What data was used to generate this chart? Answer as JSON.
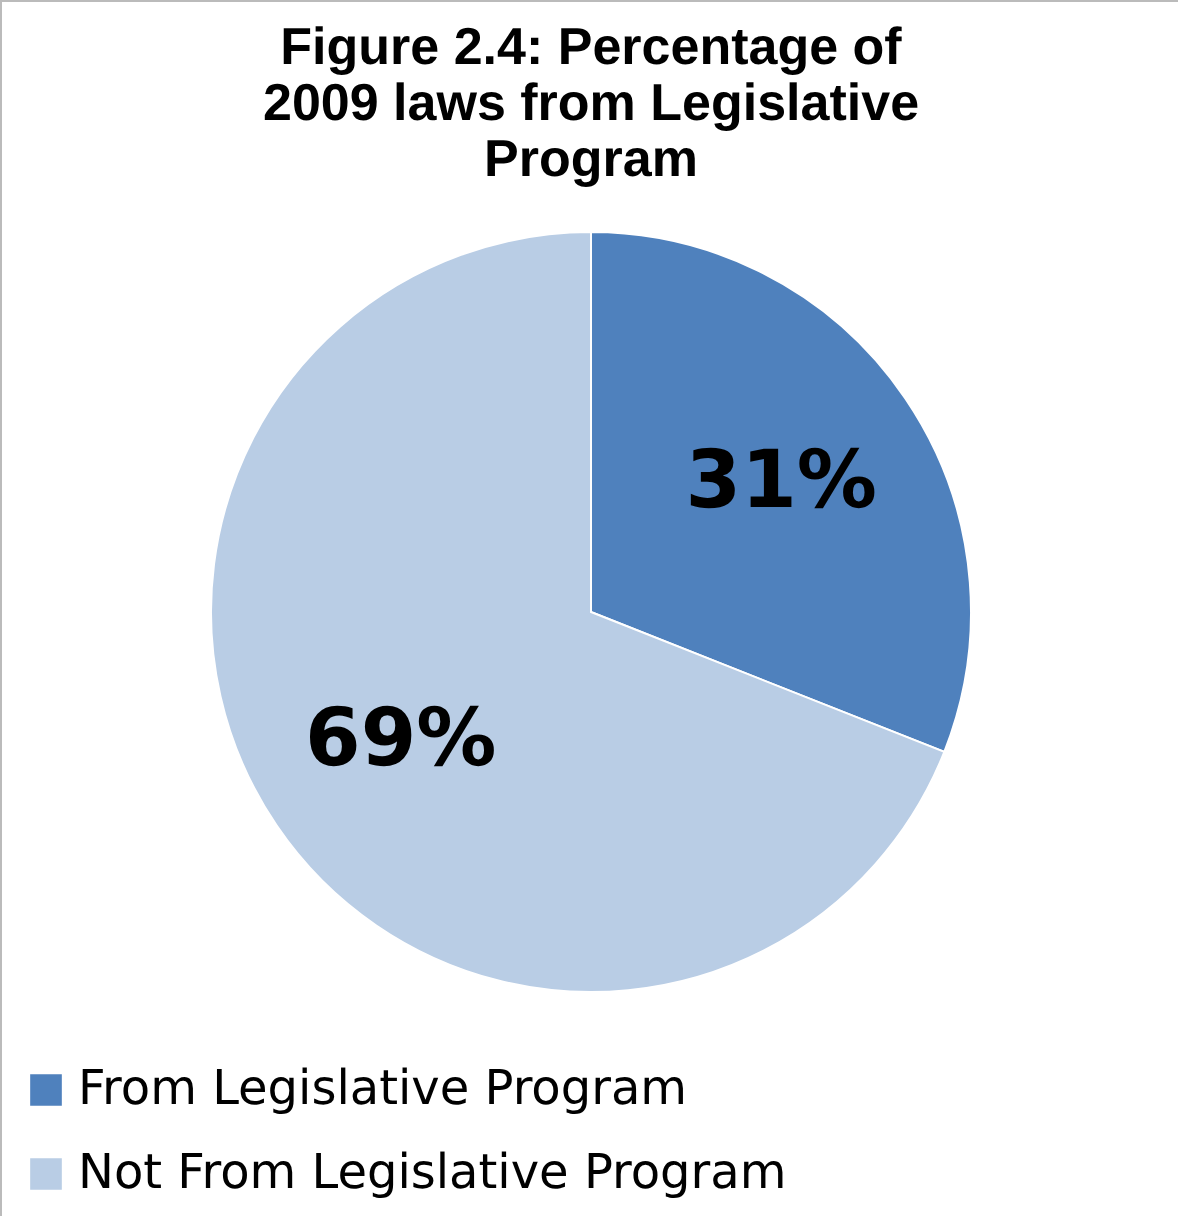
{
  "chart_data": {
    "type": "pie",
    "title": "Figure 2.4: Percentage of 2009 laws from Legislative Program",
    "categories": [
      "From Legislative Program",
      "Not From Legislative Program"
    ],
    "values": [
      31,
      69
    ],
    "colors": [
      "#4f81bd",
      "#b9cde5"
    ],
    "value_labels": [
      "31%",
      "69%"
    ],
    "legend": "bottom"
  }
}
